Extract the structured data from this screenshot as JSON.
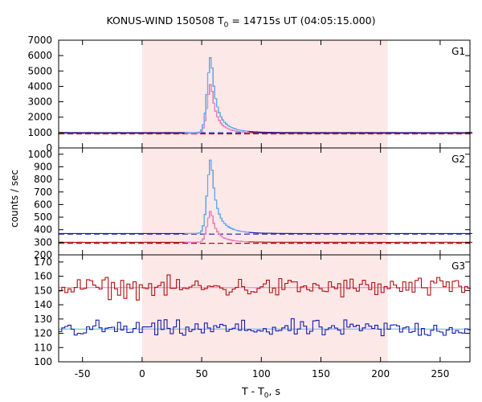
{
  "title_main": "KONUS-WIND 150508 T",
  "title_sub": "0",
  "title_rest": " = 14715s UT (04:05:15.000)",
  "ylabel": "counts / sec",
  "xlabel_main": "T - T",
  "xlabel_sub": "0",
  "xlabel_rest": ", s",
  "colors": {
    "shade": "#fde8e8",
    "dark_blue": "#1a1aa8",
    "light_blue": "#5ab4f0",
    "dark_red": "#b01010",
    "pink": "#ee7ccc",
    "frame": "#000000"
  },
  "chart_data": {
    "type": "line",
    "xlim": [
      -70,
      275
    ],
    "xticks": [
      -50,
      0,
      50,
      100,
      150,
      200,
      250
    ],
    "shaded_interval": [
      0,
      206
    ],
    "panels": [
      {
        "name": "G1",
        "ylim": [
          0,
          7000
        ],
        "yticks": [
          0,
          1000,
          2000,
          3000,
          4000,
          5000,
          6000,
          7000
        ],
        "baseline_low": 950,
        "baseline_high": 1000,
        "pulse_center": 58,
        "pulse_peak_high": 6000,
        "pulse_peak_low": 4200
      },
      {
        "name": "G2",
        "ylim": [
          200,
          1050
        ],
        "yticks": [
          200,
          300,
          400,
          500,
          600,
          700,
          800,
          900,
          1000
        ],
        "baseline_low": 300,
        "baseline_high": 370,
        "pulse_center": 58,
        "pulse_peak_high": 970,
        "pulse_peak_low": 550
      },
      {
        "name": "G3",
        "ylim": [
          100,
          175
        ],
        "yticks": [
          100,
          110,
          120,
          130,
          140,
          150,
          160,
          170
        ],
        "baseline_low": 123,
        "baseline_high": 152
      }
    ]
  }
}
